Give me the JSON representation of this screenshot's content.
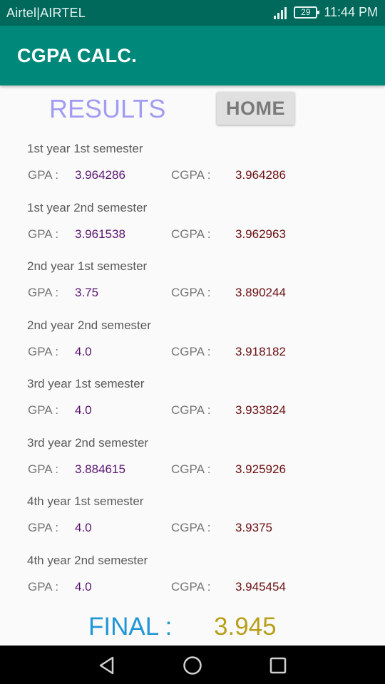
{
  "status_bar": {
    "carrier": "Airtel|AIRTEL",
    "battery": "29",
    "time": "11:44 PM"
  },
  "app_bar": {
    "title": "CGPA CALC."
  },
  "results_title": "RESULTS",
  "home_button": "HOME",
  "labels": {
    "gpa": "GPA :",
    "cgpa": "CGPA :"
  },
  "semesters": [
    {
      "title": "1st year 1st semester",
      "gpa": "3.964286",
      "cgpa": "3.964286"
    },
    {
      "title": "1st year 2nd semester",
      "gpa": "3.961538",
      "cgpa": "3.962963"
    },
    {
      "title": "2nd year 1st semester",
      "gpa": "3.75",
      "cgpa": "3.890244"
    },
    {
      "title": "2nd year 2nd semester",
      "gpa": "4.0",
      "cgpa": "3.918182"
    },
    {
      "title": "3rd year 1st semester",
      "gpa": "4.0",
      "cgpa": "3.933824"
    },
    {
      "title": "3rd year 2nd semester",
      "gpa": "3.884615",
      "cgpa": "3.925926"
    },
    {
      "title": "4th year 1st semester",
      "gpa": "4.0",
      "cgpa": "3.9375"
    },
    {
      "title": "4th year 2nd semester",
      "gpa": "4.0",
      "cgpa": "3.945454"
    }
  ],
  "final": {
    "label": "FINAL :",
    "value": "3.945"
  },
  "colors": {
    "status_bar": "#00695c",
    "app_bar": "#00897b",
    "results_title": "#a29cf4",
    "gpa_value": "#5a1470",
    "cgpa_value": "#6b0f12",
    "final_label": "#2196d6",
    "final_value": "#b8a01c"
  },
  "icons": {
    "signal": "signal-icon",
    "battery": "battery-icon",
    "back": "back-icon",
    "home": "home-circle-icon",
    "recents": "recents-icon"
  }
}
